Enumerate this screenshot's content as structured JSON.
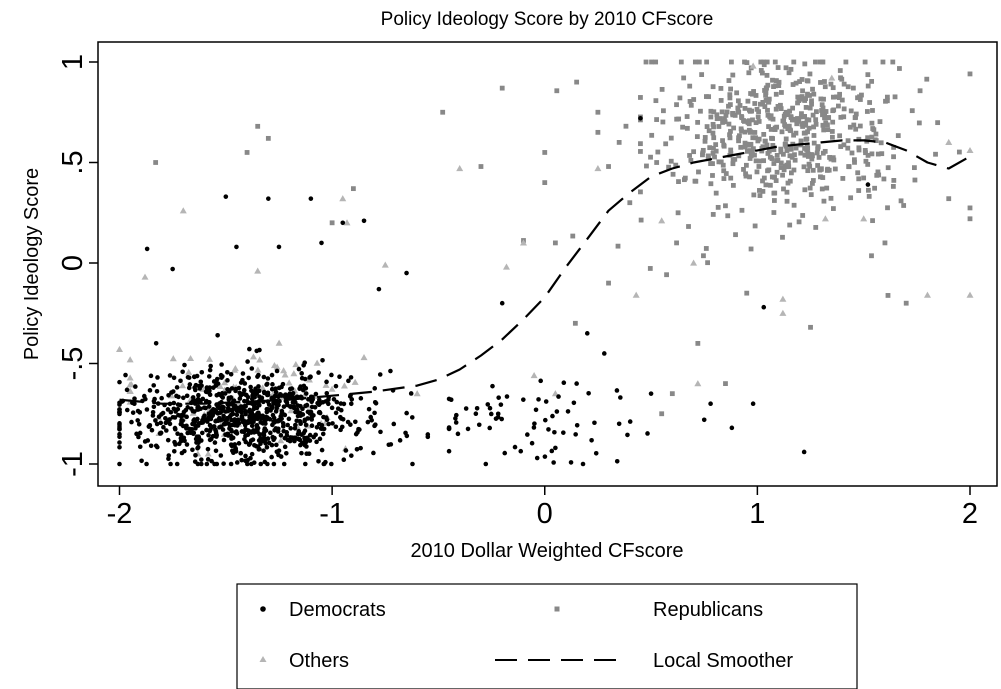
{
  "chart_data": {
    "type": "scatter",
    "title": "Policy Ideology Score by 2010 CFscore",
    "xlabel": "2010 Dollar Weighted CFscore",
    "ylabel": "Policy Ideology Score",
    "xlim": [
      -2.05,
      2.05
    ],
    "ylim": [
      -1.08,
      1.05
    ],
    "x_ticks": [
      {
        "value": -2,
        "label": "-2"
      },
      {
        "value": -1,
        "label": "-1"
      },
      {
        "value": 0,
        "label": "0"
      },
      {
        "value": 1,
        "label": "1"
      },
      {
        "value": 2,
        "label": "2"
      }
    ],
    "y_ticks": [
      {
        "value": 1,
        "label": "1"
      },
      {
        "value": 0.5,
        "label": ".5"
      },
      {
        "value": 0,
        "label": "0"
      },
      {
        "value": -0.5,
        "label": "-.5"
      },
      {
        "value": -1,
        "label": "-1"
      }
    ],
    "grid": false,
    "legend_position": "bottom",
    "series": [
      {
        "name": "Democrats",
        "marker": "circle",
        "color": "#000000",
        "approx_count": 950,
        "clusters": [
          {
            "x_mean": -1.4,
            "x_sd": 0.28,
            "x_range": [
              -2.0,
              -0.55
            ],
            "y_mean": -0.76,
            "y_sd": 0.12,
            "y_range": [
              -1.0,
              0.35
            ],
            "share": 0.93
          },
          {
            "x_mean": -0.05,
            "x_sd": 0.25,
            "x_range": [
              -0.45,
              0.5
            ],
            "y_mean": -0.8,
            "y_sd": 0.1,
            "y_range": [
              -1.0,
              -0.3
            ],
            "share": 0.07
          }
        ],
        "points": [
          [
            -1.5,
            0.33
          ],
          [
            -1.3,
            0.32
          ],
          [
            -1.1,
            0.32
          ],
          [
            -0.85,
            0.21
          ],
          [
            -1.87,
            0.07
          ],
          [
            -1.45,
            0.08
          ],
          [
            -1.25,
            0.08
          ],
          [
            -0.95,
            0.2
          ],
          [
            -0.65,
            -0.05
          ],
          [
            -1.75,
            -0.03
          ],
          [
            -1.05,
            0.1
          ],
          [
            -0.78,
            -0.13
          ],
          [
            -0.2,
            -0.2
          ],
          [
            0.2,
            -0.35
          ],
          [
            0.28,
            -0.45
          ],
          [
            0.35,
            -0.8
          ],
          [
            0.5,
            -0.65
          ],
          [
            0.75,
            -0.78
          ],
          [
            0.78,
            -0.7
          ],
          [
            0.88,
            -0.82
          ],
          [
            0.98,
            -0.7
          ],
          [
            1.03,
            -0.22
          ],
          [
            1.22,
            -0.94
          ],
          [
            1.52,
            0.39
          ],
          [
            0.18,
            -1.0
          ],
          [
            0.45,
            0.72
          ],
          [
            0.05,
            -0.92
          ],
          [
            0.15,
            -0.6
          ]
        ]
      },
      {
        "name": "Republicans",
        "marker": "square",
        "color": "#888888",
        "approx_count": 620,
        "clusters": [
          {
            "x_mean": 1.1,
            "x_sd": 0.28,
            "x_range": [
              0.45,
              1.95
            ],
            "y_mean": 0.64,
            "y_sd": 0.19,
            "y_range": [
              -0.3,
              1.0
            ],
            "share": 0.92
          },
          {
            "x_mean": 1.0,
            "x_sd": 0.55,
            "x_range": [
              -0.1,
              2.0
            ],
            "y_mean": 0.45,
            "y_sd": 0.35,
            "y_range": [
              -0.3,
              1.0
            ],
            "share": 0.08
          }
        ],
        "points": [
          [
            -1.35,
            0.68
          ],
          [
            -1.3,
            0.62
          ],
          [
            -1.4,
            0.55
          ],
          [
            -1.83,
            0.5
          ],
          [
            -0.48,
            0.75
          ],
          [
            -0.3,
            0.48
          ],
          [
            -0.2,
            0.87
          ],
          [
            -0.9,
            0.37
          ],
          [
            -1.0,
            0.2
          ],
          [
            0.0,
            0.4
          ],
          [
            0.0,
            0.55
          ],
          [
            0.05,
            0.1
          ],
          [
            0.15,
            0.9
          ],
          [
            0.25,
            0.75
          ],
          [
            0.3,
            0.48
          ],
          [
            0.35,
            0.6
          ],
          [
            0.4,
            0.3
          ],
          [
            0.55,
            -0.75
          ],
          [
            0.62,
            0.1
          ],
          [
            0.72,
            -0.4
          ],
          [
            0.85,
            -0.6
          ],
          [
            0.95,
            -0.15
          ],
          [
            1.25,
            -0.32
          ],
          [
            1.6,
            0.1
          ],
          [
            1.7,
            -0.2
          ],
          [
            1.9,
            0.32
          ],
          [
            2.0,
            0.22
          ],
          [
            0.6,
            -0.65
          ],
          [
            0.3,
            -0.1
          ],
          [
            0.25,
            0.65
          ]
        ]
      },
      {
        "name": "Others",
        "marker": "triangle",
        "color": "#b5b5b5",
        "approx_count": 110,
        "clusters": [
          {
            "x_mean": -1.4,
            "x_sd": 0.3,
            "x_range": [
              -1.95,
              -0.6
            ],
            "y_mean": -0.7,
            "y_sd": 0.15,
            "y_range": [
              -0.95,
              -0.3
            ],
            "share": 0.75
          }
        ],
        "points": [
          [
            -2.0,
            -0.43
          ],
          [
            -1.88,
            -0.07
          ],
          [
            -1.7,
            0.26
          ],
          [
            -1.35,
            -0.04
          ],
          [
            -0.95,
            0.32
          ],
          [
            -0.93,
            0.2
          ],
          [
            -0.85,
            -0.47
          ],
          [
            -0.75,
            -0.01
          ],
          [
            -0.4,
            0.47
          ],
          [
            -0.18,
            -0.02
          ],
          [
            -0.05,
            -0.56
          ],
          [
            0.05,
            -0.65
          ],
          [
            -0.1,
            0.1
          ],
          [
            0.25,
            0.47
          ],
          [
            0.55,
            0.21
          ],
          [
            0.7,
            0.0
          ],
          [
            0.72,
            -0.6
          ],
          [
            1.12,
            -0.18
          ],
          [
            1.12,
            -0.25
          ],
          [
            1.32,
            0.22
          ],
          [
            1.5,
            0.22
          ],
          [
            1.8,
            -0.16
          ],
          [
            1.9,
            0.6
          ],
          [
            2.0,
            0.56
          ],
          [
            2.0,
            -0.16
          ],
          [
            0.43,
            -0.16
          ],
          [
            0.98,
            0.98
          ],
          [
            1.35,
            0.92
          ]
        ]
      },
      {
        "name": "Local Smoother",
        "marker": "dashed-line",
        "color": "#000000",
        "x": [
          -2.0,
          -1.8,
          -1.6,
          -1.4,
          -1.2,
          -1.0,
          -0.8,
          -0.6,
          -0.5,
          -0.4,
          -0.3,
          -0.2,
          -0.1,
          0.0,
          0.1,
          0.2,
          0.3,
          0.4,
          0.5,
          0.6,
          0.7,
          0.8,
          0.9,
          1.0,
          1.1,
          1.2,
          1.3,
          1.4,
          1.5,
          1.6,
          1.7,
          1.8,
          1.9,
          2.0
        ],
        "y": [
          -0.68,
          -0.7,
          -0.7,
          -0.69,
          -0.68,
          -0.66,
          -0.64,
          -0.61,
          -0.58,
          -0.53,
          -0.46,
          -0.38,
          -0.28,
          -0.17,
          -0.02,
          0.12,
          0.26,
          0.35,
          0.43,
          0.47,
          0.5,
          0.52,
          0.54,
          0.56,
          0.58,
          0.59,
          0.6,
          0.61,
          0.61,
          0.6,
          0.56,
          0.5,
          0.47,
          0.53
        ]
      }
    ]
  },
  "legend": {
    "items": [
      {
        "label": "Democrats",
        "symbol": "circle"
      },
      {
        "label": "Republicans",
        "symbol": "square"
      },
      {
        "label": "Others",
        "symbol": "triangle"
      },
      {
        "label": "Local Smoother",
        "symbol": "dashed-line"
      }
    ]
  },
  "colors": {
    "democrats": "#000000",
    "republicans": "#888888",
    "others": "#b5b5b5",
    "axis": "#000000"
  }
}
